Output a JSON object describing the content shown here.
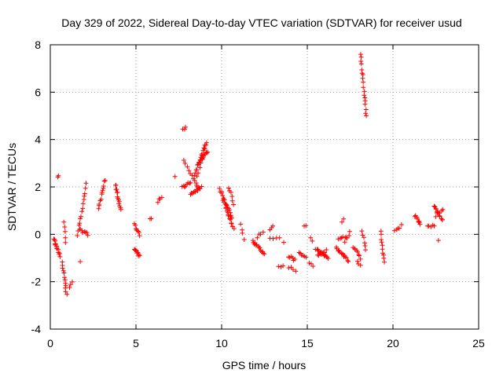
{
  "chart_data": {
    "type": "scatter",
    "title": "Day 329 of 2022, Sidereal Day-to-day VTEC variation (SDTVAR) for receiver usud",
    "xlabel": "GPS time / hours",
    "ylabel": "SDTVAR / TECUs",
    "xlim": [
      0,
      25
    ],
    "ylim": [
      -4,
      8
    ],
    "xticks": [
      0,
      5,
      10,
      15,
      20,
      25
    ],
    "yticks": [
      -4,
      -2,
      0,
      2,
      4,
      6,
      8
    ],
    "grid": true,
    "marker": "plus",
    "color": "#ff0000",
    "segments": [
      {
        "t0": 0.2,
        "t1": 0.55,
        "y0": -0.2,
        "y1": -0.9,
        "n": 14
      },
      {
        "t0": 0.45,
        "t1": 0.5,
        "y0": 2.4,
        "y1": 2.5,
        "n": 2
      },
      {
        "t0": 0.7,
        "t1": 0.95,
        "y0": -1.2,
        "y1": -2.5,
        "n": 12
      },
      {
        "t0": 0.8,
        "t1": 0.9,
        "y0": 0.5,
        "y1": -0.3,
        "n": 5
      },
      {
        "t0": 1.1,
        "t1": 1.3,
        "y0": -2.3,
        "y1": -2.0,
        "n": 3
      },
      {
        "t0": 1.6,
        "t1": 2.1,
        "y0": 0.0,
        "y1": 2.1,
        "n": 14
      },
      {
        "t0": 1.7,
        "t1": 2.2,
        "y0": 0.2,
        "y1": 0.0,
        "n": 8
      },
      {
        "t0": 1.75,
        "t1": 1.75,
        "y0": -1.1,
        "y1": -1.1,
        "n": 1
      },
      {
        "t0": 2.8,
        "t1": 3.2,
        "y0": 1.1,
        "y1": 2.3,
        "n": 12
      },
      {
        "t0": 3.8,
        "t1": 4.1,
        "y0": 2.1,
        "y1": 1.1,
        "n": 14
      },
      {
        "t0": 4.9,
        "t1": 5.2,
        "y0": -0.6,
        "y1": -0.9,
        "n": 10
      },
      {
        "t0": 4.9,
        "t1": 5.2,
        "y0": 0.4,
        "y1": 0.0,
        "n": 8
      },
      {
        "t0": 5.8,
        "t1": 5.9,
        "y0": 0.65,
        "y1": 0.7,
        "n": 2
      },
      {
        "t0": 6.3,
        "t1": 6.5,
        "y0": 1.4,
        "y1": 1.6,
        "n": 4
      },
      {
        "t0": 7.3,
        "t1": 7.3,
        "y0": 2.5,
        "y1": 2.5,
        "n": 1
      },
      {
        "t0": 7.75,
        "t1": 7.9,
        "y0": 4.4,
        "y1": 4.5,
        "n": 3
      },
      {
        "t0": 7.7,
        "t1": 8.2,
        "y0": 2.0,
        "y1": 2.2,
        "n": 8
      },
      {
        "t0": 7.8,
        "t1": 8.6,
        "y0": 3.1,
        "y1": 2.0,
        "n": 10
      },
      {
        "t0": 8.2,
        "t1": 8.8,
        "y0": 1.7,
        "y1": 2.0,
        "n": 12
      },
      {
        "t0": 8.4,
        "t1": 9.1,
        "y0": 2.5,
        "y1": 3.9,
        "n": 16
      },
      {
        "t0": 8.6,
        "t1": 9.2,
        "y0": 3.0,
        "y1": 3.5,
        "n": 12
      },
      {
        "t0": 8.5,
        "t1": 9.0,
        "y0": 2.2,
        "y1": 3.6,
        "n": 8
      },
      {
        "t0": 9.9,
        "t1": 10.6,
        "y0": 1.9,
        "y1": 0.7,
        "n": 18
      },
      {
        "t0": 10.1,
        "t1": 10.7,
        "y0": 1.4,
        "y1": 0.2,
        "n": 16
      },
      {
        "t0": 10.4,
        "t1": 10.7,
        "y0": 2.0,
        "y1": 1.3,
        "n": 6
      },
      {
        "t0": 11.1,
        "t1": 11.3,
        "y0": 0.4,
        "y1": -0.2,
        "n": 4
      },
      {
        "t0": 11.8,
        "t1": 12.5,
        "y0": -0.3,
        "y1": -0.8,
        "n": 14
      },
      {
        "t0": 12.1,
        "t1": 12.4,
        "y0": -0.1,
        "y1": 0.1,
        "n": 4
      },
      {
        "t0": 12.8,
        "t1": 13.0,
        "y0": 0.2,
        "y1": 0.3,
        "n": 3
      },
      {
        "t0": 12.8,
        "t1": 13.2,
        "y0": -0.2,
        "y1": -0.2,
        "n": 3
      },
      {
        "t0": 13.3,
        "t1": 13.6,
        "y0": -1.4,
        "y1": -1.3,
        "n": 3
      },
      {
        "t0": 13.4,
        "t1": 13.6,
        "y0": -0.2,
        "y1": -0.3,
        "n": 2
      },
      {
        "t0": 13.9,
        "t1": 14.3,
        "y0": -0.9,
        "y1": -1.1,
        "n": 6
      },
      {
        "t0": 13.9,
        "t1": 14.3,
        "y0": -1.4,
        "y1": -1.5,
        "n": 4
      },
      {
        "t0": 14.5,
        "t1": 14.9,
        "y0": -0.8,
        "y1": -1.0,
        "n": 6
      },
      {
        "t0": 14.8,
        "t1": 14.9,
        "y0": 0.3,
        "y1": 0.4,
        "n": 2
      },
      {
        "t0": 15.1,
        "t1": 15.3,
        "y0": -1.2,
        "y1": -1.3,
        "n": 3
      },
      {
        "t0": 15.2,
        "t1": 15.3,
        "y0": -0.2,
        "y1": -0.3,
        "n": 2
      },
      {
        "t0": 15.5,
        "t1": 16.2,
        "y0": -0.6,
        "y1": -1.0,
        "n": 16
      },
      {
        "t0": 15.6,
        "t1": 16.1,
        "y0": -0.9,
        "y1": -0.7,
        "n": 8
      },
      {
        "t0": 16.7,
        "t1": 17.4,
        "y0": -0.6,
        "y1": -1.1,
        "n": 14
      },
      {
        "t0": 16.8,
        "t1": 17.2,
        "y0": -0.2,
        "y1": -0.1,
        "n": 5
      },
      {
        "t0": 17.0,
        "t1": 17.1,
        "y0": 0.55,
        "y1": 0.6,
        "n": 2
      },
      {
        "t0": 17.2,
        "t1": 17.5,
        "y0": -0.3,
        "y1": 0.1,
        "n": 5
      },
      {
        "t0": 17.7,
        "t1": 18.1,
        "y0": -0.5,
        "y1": -1.0,
        "n": 8
      },
      {
        "t0": 17.9,
        "t1": 18.1,
        "y0": -1.1,
        "y1": -1.3,
        "n": 3
      },
      {
        "t0": 18.2,
        "t1": 18.4,
        "y0": 0.1,
        "y1": -0.6,
        "n": 6
      },
      {
        "t0": 18.1,
        "t1": 18.45,
        "y0": 7.6,
        "y1": 5.0,
        "n": 18
      },
      {
        "t0": 19.3,
        "t1": 19.5,
        "y0": 0.1,
        "y1": -1.2,
        "n": 10
      },
      {
        "t0": 20.1,
        "t1": 20.5,
        "y0": 0.2,
        "y1": 0.35,
        "n": 5
      },
      {
        "t0": 21.3,
        "t1": 21.6,
        "y0": 0.8,
        "y1": 0.4,
        "n": 8
      },
      {
        "t0": 22.0,
        "t1": 22.4,
        "y0": 0.3,
        "y1": 0.35,
        "n": 5
      },
      {
        "t0": 22.4,
        "t1": 22.9,
        "y0": 1.2,
        "y1": 0.6,
        "n": 12
      },
      {
        "t0": 22.5,
        "t1": 22.9,
        "y0": 0.8,
        "y1": 1.0,
        "n": 6
      },
      {
        "t0": 22.65,
        "t1": 22.65,
        "y0": -0.2,
        "y1": -0.2,
        "n": 1
      }
    ]
  }
}
